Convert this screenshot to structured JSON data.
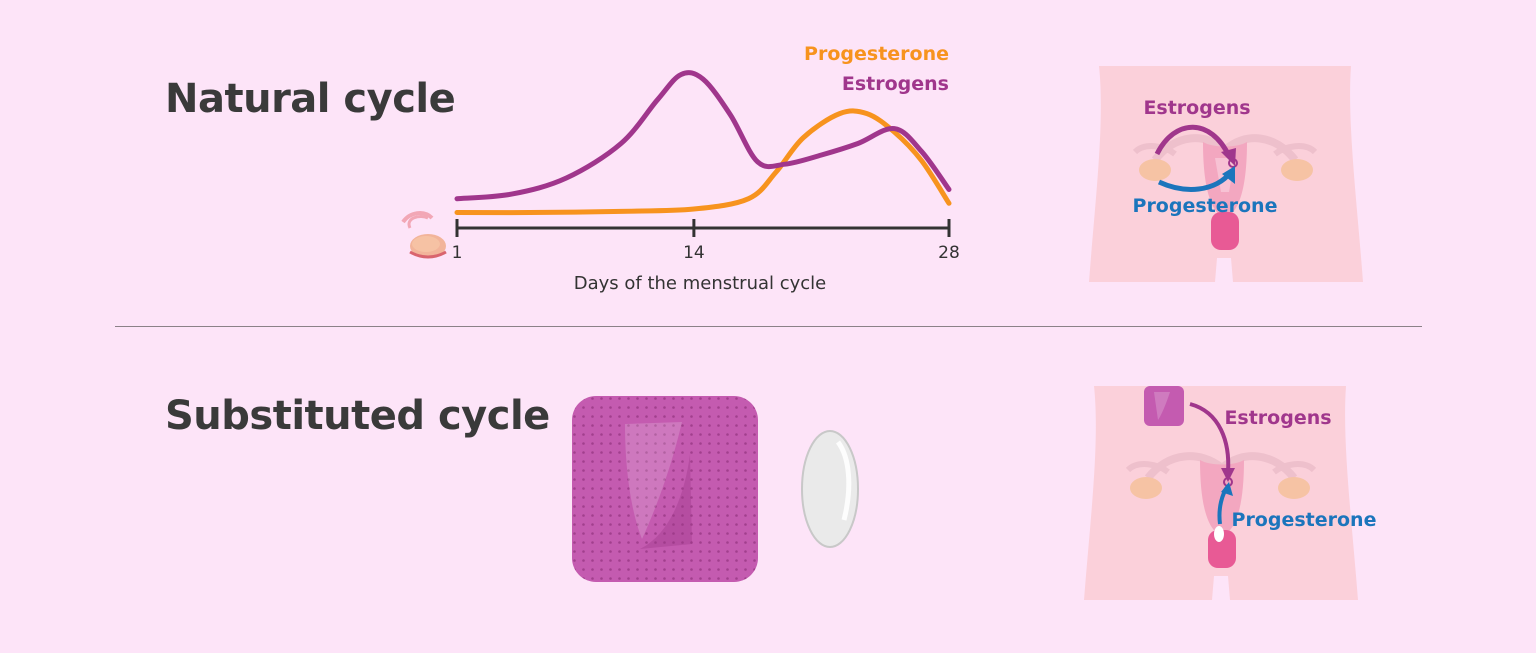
{
  "titles": {
    "natural": "Natural cycle",
    "substituted": "Substituted cycle"
  },
  "colors": {
    "background": "#fde4f8",
    "estrogens": "#a0368c",
    "progesterone": "#f7931e",
    "progesterone_arrow": "#1b75bc",
    "body": "#fbd0da"
  },
  "chart_data": {
    "type": "line",
    "x_ticks": [
      "1",
      "14",
      "28"
    ],
    "xlabel": "Days of the menstrual cycle",
    "xlim": [
      1,
      28
    ],
    "series": [
      {
        "name": "Progesterone",
        "color": "#f7931e",
        "points": [
          [
            1,
            1.0
          ],
          [
            5,
            1.0
          ],
          [
            10,
            1.1
          ],
          [
            14,
            1.3
          ],
          [
            17,
            2.2
          ],
          [
            18.5,
            4.5
          ],
          [
            20,
            7.5
          ],
          [
            22,
            9.6
          ],
          [
            23.5,
            9.6
          ],
          [
            25,
            8.0
          ],
          [
            26.5,
            5.5
          ],
          [
            28,
            1.8
          ]
        ]
      },
      {
        "name": "Estrogens",
        "color": "#a0368c",
        "points": [
          [
            1,
            2.2
          ],
          [
            4,
            2.6
          ],
          [
            7,
            4.0
          ],
          [
            10,
            7.0
          ],
          [
            12,
            10.8
          ],
          [
            13.3,
            13.0
          ],
          [
            14.5,
            12.6
          ],
          [
            16,
            9.5
          ],
          [
            17.5,
            5.4
          ],
          [
            19,
            5.2
          ],
          [
            21,
            6.0
          ],
          [
            23,
            7.0
          ],
          [
            25,
            8.3
          ],
          [
            26.5,
            6.3
          ],
          [
            28,
            3.0
          ]
        ]
      }
    ]
  },
  "natural_diagram": {
    "estrogens_label": "Estrogens",
    "progesterone_label": "Progesterone"
  },
  "substituted_diagram": {
    "estrogens_label": "Estrogens",
    "progesterone_label": "Progesterone"
  }
}
